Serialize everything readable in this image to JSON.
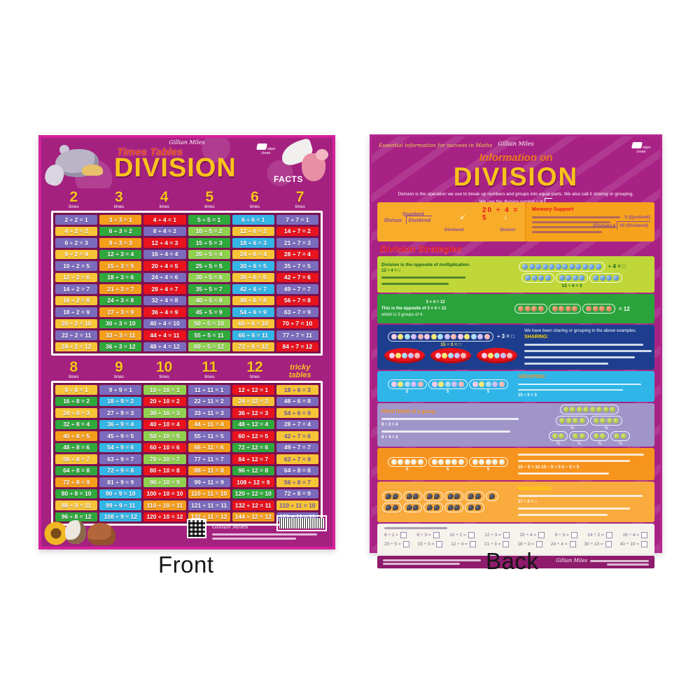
{
  "page": {
    "front_label": "Front",
    "back_label": "Back"
  },
  "colors": {
    "poster_bg": "#a42180",
    "poster_edge": "#d6219c",
    "back_bg": "#a82285",
    "cell_purple": "#7a6bbc",
    "cell_yellow": "#f6c437",
    "cell_red": "#e8131c",
    "cell_green": "#2fa83c",
    "cell_lightgreen": "#8fd14f",
    "cell_blue": "#33b5e5",
    "cell_orange": "#f59e1b",
    "title_yellow": "#f9c31c"
  },
  "front": {
    "brand": "Gillian Miles",
    "badge": "wipe clean",
    "series": "Times Tables",
    "title": "DIVISION",
    "title_suffix": "FACTS",
    "table1": {
      "headers": [
        {
          "num": "2",
          "word": "times"
        },
        {
          "num": "3",
          "word": "times"
        },
        {
          "num": "4",
          "word": "times"
        },
        {
          "num": "5",
          "word": "times"
        },
        {
          "num": "6",
          "word": "times"
        },
        {
          "num": "7",
          "word": "times"
        }
      ],
      "columns": [
        {
          "odd": "#7a6bbc",
          "even": "#f6c437",
          "facts": [
            "2 ÷ 2 = 1",
            "4 ÷ 2 = 2",
            "6 ÷ 2 = 3",
            "8 ÷ 2 = 4",
            "10 ÷ 2 = 5",
            "12 ÷ 2 = 6",
            "14 ÷ 2 = 7",
            "16 ÷ 2 = 8",
            "18 ÷ 2 = 9",
            "20 ÷ 2 = 10",
            "22 ÷ 2 = 11",
            "24 ÷ 2 = 12"
          ]
        },
        {
          "odd": "#f59e1b",
          "even": "#2fa83c",
          "facts": [
            "3 ÷ 3 = 1",
            "6 ÷ 3 = 2",
            "9 ÷ 3 = 3",
            "12 ÷ 3 = 4",
            "15 ÷ 3 = 5",
            "18 ÷ 3 = 6",
            "21 ÷ 3 = 7",
            "24 ÷ 3 = 8",
            "27 ÷ 3 = 9",
            "30 ÷ 3 = 10",
            "33 ÷ 3 = 11",
            "36 ÷ 3 = 12"
          ]
        },
        {
          "odd": "#e8131c",
          "even": "#7a6bbc",
          "facts": [
            "4 ÷ 4 = 1",
            "8 ÷ 4 = 2",
            "12 ÷ 4 = 3",
            "16 ÷ 4 = 4",
            "20 ÷ 4 = 5",
            "24 ÷ 4 = 6",
            "28 ÷ 4 = 7",
            "32 ÷ 4 = 8",
            "36 ÷ 4 = 9",
            "40 ÷ 4 = 10",
            "44 ÷ 4 = 11",
            "48 ÷ 4 = 12"
          ]
        },
        {
          "odd": "#2fa83c",
          "even": "#8fd14f",
          "facts": [
            "5 ÷ 5 = 1",
            "10 ÷ 5 = 2",
            "15 ÷ 5 = 3",
            "20 ÷ 5 = 4",
            "25 ÷ 5 = 5",
            "30 ÷ 5 = 6",
            "35 ÷ 5 = 7",
            "40 ÷ 5 = 8",
            "45 ÷ 5 = 9",
            "50 ÷ 5 = 10",
            "55 ÷ 5 = 11",
            "60 ÷ 5 = 12"
          ]
        },
        {
          "odd": "#33b5e5",
          "even": "#f6c437",
          "facts": [
            "6 ÷ 6 = 1",
            "12 ÷ 6 = 2",
            "18 ÷ 6 = 3",
            "24 ÷ 6 = 4",
            "30 ÷ 6 = 5",
            "36 ÷ 6 = 6",
            "42 ÷ 6 = 7",
            "48 ÷ 6 = 8",
            "54 ÷ 6 = 9",
            "60 ÷ 6 = 10",
            "66 ÷ 6 = 11",
            "72 ÷ 6 = 12"
          ]
        },
        {
          "odd": "#7a6bbc",
          "even": "#e8131c",
          "facts": [
            "7 ÷ 7 = 1",
            "14 ÷ 7 = 2",
            "21 ÷ 7 = 3",
            "28 ÷ 7 = 4",
            "35 ÷ 7 = 5",
            "42 ÷ 7 = 6",
            "49 ÷ 7 = 7",
            "56 ÷ 7 = 8",
            "63 ÷ 7 = 9",
            "70 ÷ 7 = 10",
            "77 ÷ 7 = 11",
            "84 ÷ 7 = 12"
          ]
        }
      ]
    },
    "table2": {
      "headers": [
        {
          "num": "8",
          "word": "times"
        },
        {
          "num": "9",
          "word": "times"
        },
        {
          "num": "10",
          "word": "times"
        },
        {
          "num": "11",
          "word": "times"
        },
        {
          "num": "12",
          "word": "times"
        },
        {
          "tricky": "tricky tables"
        }
      ],
      "columns": [
        {
          "odd": "#f6c437",
          "even": "#2fa83c",
          "overrides": {
            "5": "#f59e1b",
            "9": "#f59e1b"
          },
          "facts": [
            "8 ÷ 8 = 1",
            "16 ÷ 8 = 2",
            "24 ÷ 8 = 3",
            "32 ÷ 8 = 4",
            "40 ÷ 8 = 5",
            "48 ÷ 8 = 6",
            "56 ÷ 8 = 7",
            "64 ÷ 8 = 8",
            "72 ÷ 8 = 9",
            "80 ÷ 8 = 10",
            "88 ÷ 8 = 11",
            "96 ÷ 8 = 12"
          ]
        },
        {
          "odd": "#7a6bbc",
          "even": "#33b5e5",
          "overrides": {
            "11": "#33b5e5"
          },
          "facts": [
            "9 ÷ 9 = 1",
            "18 ÷ 9 = 2",
            "27 ÷ 9 = 3",
            "36 ÷ 9 = 4",
            "45 ÷ 9 = 5",
            "54 ÷ 9 = 6",
            "63 ÷ 9 = 7",
            "72 ÷ 9 = 8",
            "81 ÷ 9 = 9",
            "90 ÷ 9 = 10",
            "99 ÷ 9 = 11",
            "108 ÷ 9 = 12"
          ]
        },
        {
          "odd": "#8fd14f",
          "even": "#e8131c",
          "overrides": {
            "11": "#f59e1b"
          },
          "facts": [
            "10 ÷ 10 = 1",
            "20 ÷ 10 = 2",
            "30 ÷ 10 = 3",
            "40 ÷ 10 = 4",
            "50 ÷ 10 = 5",
            "60 ÷ 10 = 6",
            "70 ÷ 10 = 7",
            "80 ÷ 10 = 8",
            "90 ÷ 10 = 9",
            "100 ÷ 10 = 10",
            "110 ÷ 10 = 11",
            "120 ÷ 10 = 12"
          ]
        },
        {
          "odd": "#7a6bbc",
          "even": "#f59e1b",
          "overrides": {
            "2": "#7a6bbc"
          },
          "facts": [
            "11 ÷ 11 = 1",
            "22 ÷ 11 = 2",
            "33 ÷ 11 = 3",
            "44 ÷ 11 = 4",
            "55 ÷ 11 = 5",
            "66 ÷ 11 = 6",
            "77 ÷ 11 = 7",
            "88 ÷ 11 = 8",
            "99 ÷ 11 = 9",
            "110 ÷ 11 = 10",
            "121 ÷ 11 = 11",
            "132 ÷ 11 = 12"
          ]
        },
        {
          "odd": "#e8131c",
          "even": "#2fa83c",
          "overrides": {
            "2": "#f6c437",
            "12": "#f59e1b"
          },
          "facts": [
            "12 ÷ 12 = 1",
            "24 ÷ 12 = 2",
            "36 ÷ 12 = 3",
            "48 ÷ 12 = 4",
            "60 ÷ 12 = 5",
            "72 ÷ 12 = 6",
            "84 ÷ 12 = 7",
            "96 ÷ 12 = 8",
            "108 ÷ 12 = 9",
            "120 ÷ 12 = 10",
            "132 ÷ 12 = 11",
            "144 ÷ 12 = 12"
          ]
        },
        {
          "odd": "#f6c437",
          "even": "#7a6bbc",
          "dark_on_light": true,
          "facts": [
            "18 ÷ 6 = 3",
            "48 ÷ 6 = 8",
            "54 ÷ 6 = 9",
            "28 ÷ 7 = 4",
            "42 ÷ 7 = 6",
            "49 ÷ 7 = 7",
            "63 ÷ 7 = 9",
            "64 ÷ 8 = 8",
            "56 ÷ 8 = 7",
            "72 ÷ 8 = 9",
            "110 ÷ 11 = 10",
            "121 ÷ 11 = 11"
          ]
        }
      ]
    }
  },
  "back": {
    "tagline": "Essential information for success in Maths",
    "brand": "Gillian Miles",
    "badge": "wipe clean",
    "brand_footer": "Gillian Miles",
    "pretitle": "Information on",
    "title": "DIVISION",
    "intro1": "Division is the operation we use to break up numbers and groups into equal parts.  We also call it sharing or grouping.",
    "intro2": "We use the division symbol  ÷  or",
    "definition": {
      "quotient": "Quotient",
      "divisor": "Divisor",
      "dividend": "Dividend",
      "example": "20 ÷ 4 = 5",
      "arrow_labels": [
        "Dividend",
        "Divisor",
        "Quotient"
      ],
      "memory_heading": "Memory Support",
      "vertical_quotient": "5 (Quotient)",
      "vertical_divisor": "(Divisor) 4",
      "vertical_dividend": "20 (Dividend)"
    },
    "strategies_heading": "Division Strategies",
    "bands": {
      "multiplication": {
        "heading": "Division is the opposite of multiplication.",
        "equation": "12 ÷ 4 = □",
        "row1_count": 12,
        "row1_suffix": "÷ 4 = □",
        "row2_groups": [
          4,
          4,
          4
        ],
        "caption": "12 ÷ 4 = 3"
      },
      "opposite": {
        "line1": "3 × 4 = 12",
        "line2": "This is the opposite of  3 × 4 = 12",
        "line3": "which is 3 groups of 4.",
        "groups": [
          4,
          4,
          4
        ],
        "suffix": "= 12"
      },
      "sharing": {
        "top_line": "We have been sharing or grouping in the above examples.",
        "heading": "SHARING:",
        "pill_count": 15,
        "pill_suffix": "÷ 3 = □",
        "caption": "15 ÷ 3 = □",
        "plates": [
          5,
          5,
          5
        ]
      },
      "grouping": {
        "heading": "GROUPING:",
        "groups": [
          5,
          5,
          5
        ],
        "labels": [
          "5",
          "5",
          "5"
        ],
        "equation": "15 ÷ 5 = 3"
      },
      "fractions": {
        "heading": "FRACTIONS of a group",
        "eq_half": "8 ÷ 2 = 4",
        "eq_quarter": "8 ÷ 4 = 2",
        "row1": [
          8
        ],
        "row2": [
          4,
          4
        ],
        "row2_label": "½",
        "row3": [
          2,
          2,
          2,
          2
        ],
        "row3_label": "¼"
      },
      "subtraction": {
        "groups": [
          5,
          5,
          5
        ],
        "labels": [
          "5",
          "5",
          "5"
        ],
        "caption": "15 − 5 = 10    10 − 5 = 5    5 − 5 = 0"
      },
      "remainders": {
        "heading": "REMAINDERS",
        "equation": "17 ÷ 2 = □",
        "row1": [
          2,
          2,
          2,
          2,
          2,
          1
        ],
        "row2": [
          2,
          2,
          2,
          2,
          2
        ]
      },
      "practice": {
        "row1": [
          "8 ÷ 2 =",
          "6 ÷ 3 =",
          "10 ÷ 2 =",
          "12 ÷ 3 =",
          "20 ÷ 4 =",
          "9 ÷ 3 =",
          "14 ÷ 2 =",
          "16 ÷ 4 ="
        ],
        "row2": [
          "20 ÷ 5 =",
          "15 ÷ 3 =",
          "12 ÷ 4 =",
          "21 ÷ 3 =",
          "18 ÷ 3 =",
          "24 ÷ 4 =",
          "30 ÷ 10 =",
          "40 ÷ 10 ="
        ]
      }
    }
  }
}
